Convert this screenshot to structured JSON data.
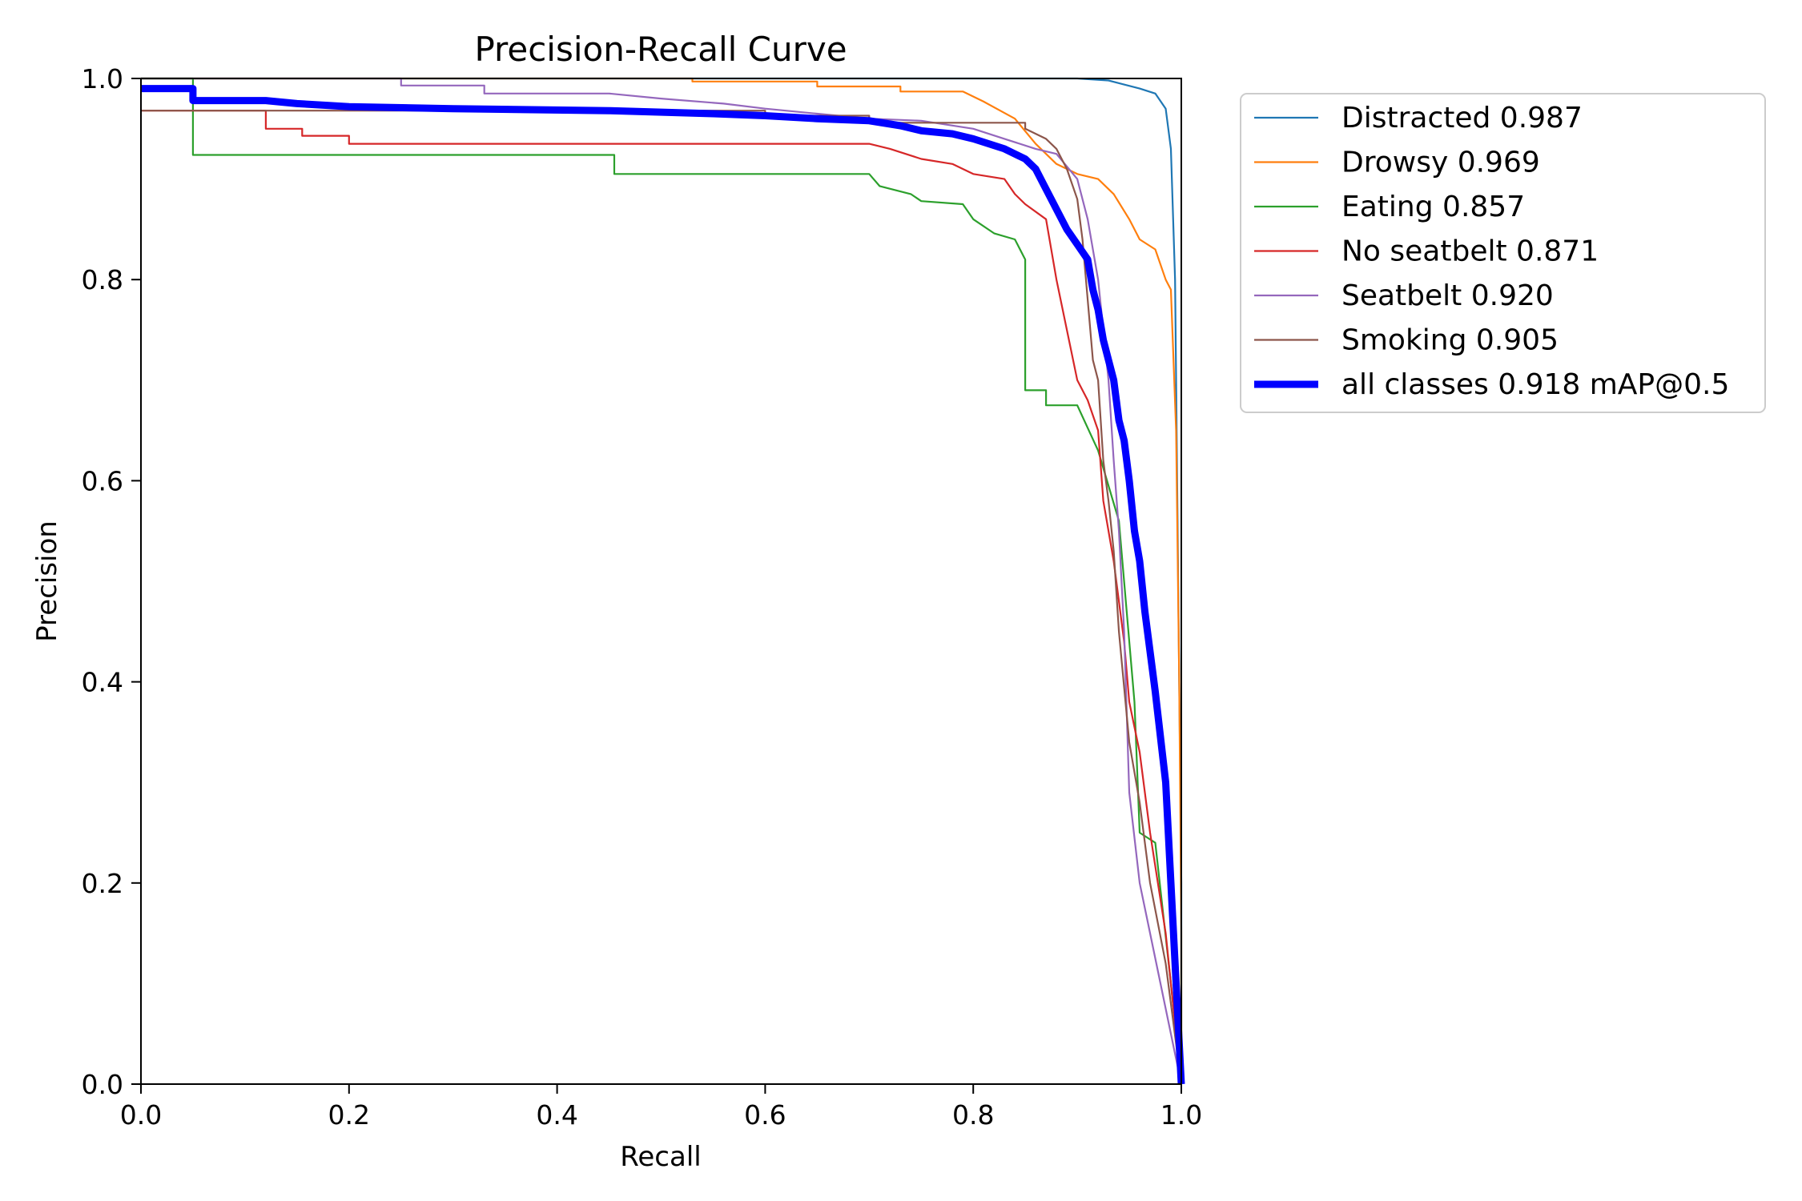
{
  "chart_data": {
    "type": "line",
    "title": "Precision-Recall Curve",
    "xlabel": "Recall",
    "ylabel": "Precision",
    "xlim": [
      0.0,
      1.0
    ],
    "ylim": [
      0.0,
      1.0
    ],
    "xticks": [
      "0.0",
      "0.2",
      "0.4",
      "0.6",
      "0.8",
      "1.0"
    ],
    "yticks": [
      "0.0",
      "0.2",
      "0.4",
      "0.6",
      "0.8",
      "1.0"
    ],
    "grid": false,
    "legend_position": "outside-top-right",
    "series": [
      {
        "name": "Distracted",
        "label": "Distracted 0.987",
        "color": "#1f77b4",
        "emphasis": false,
        "points": [
          [
            0.0,
            1.0
          ],
          [
            0.9,
            1.0
          ],
          [
            0.93,
            0.998
          ],
          [
            0.96,
            0.99
          ],
          [
            0.975,
            0.985
          ],
          [
            0.985,
            0.97
          ],
          [
            0.99,
            0.93
          ],
          [
            0.994,
            0.8
          ],
          [
            0.997,
            0.5
          ],
          [
            1.0,
            0.2
          ],
          [
            1.0,
            0.0
          ]
        ]
      },
      {
        "name": "Drowsy",
        "label": "Drowsy 0.969",
        "color": "#ff7f0e",
        "emphasis": false,
        "points": [
          [
            0.0,
            1.0
          ],
          [
            0.53,
            1.0
          ],
          [
            0.53,
            0.997
          ],
          [
            0.65,
            0.997
          ],
          [
            0.65,
            0.992
          ],
          [
            0.73,
            0.992
          ],
          [
            0.73,
            0.987
          ],
          [
            0.79,
            0.987
          ],
          [
            0.81,
            0.977
          ],
          [
            0.84,
            0.96
          ],
          [
            0.86,
            0.935
          ],
          [
            0.88,
            0.915
          ],
          [
            0.9,
            0.905
          ],
          [
            0.92,
            0.9
          ],
          [
            0.935,
            0.885
          ],
          [
            0.95,
            0.86
          ],
          [
            0.96,
            0.84
          ],
          [
            0.975,
            0.83
          ],
          [
            0.985,
            0.8
          ],
          [
            0.99,
            0.79
          ],
          [
            0.995,
            0.65
          ],
          [
            0.998,
            0.4
          ],
          [
            1.0,
            0.15
          ],
          [
            1.0,
            0.0
          ]
        ]
      },
      {
        "name": "Eating",
        "label": "Eating 0.857",
        "color": "#2ca02c",
        "emphasis": false,
        "points": [
          [
            0.0,
            1.0
          ],
          [
            0.05,
            1.0
          ],
          [
            0.05,
            0.924
          ],
          [
            0.455,
            0.924
          ],
          [
            0.455,
            0.905
          ],
          [
            0.7,
            0.905
          ],
          [
            0.71,
            0.893
          ],
          [
            0.74,
            0.885
          ],
          [
            0.75,
            0.878
          ],
          [
            0.79,
            0.875
          ],
          [
            0.8,
            0.86
          ],
          [
            0.82,
            0.846
          ],
          [
            0.84,
            0.84
          ],
          [
            0.85,
            0.82
          ],
          [
            0.85,
            0.69
          ],
          [
            0.87,
            0.69
          ],
          [
            0.87,
            0.675
          ],
          [
            0.9,
            0.675
          ],
          [
            0.92,
            0.63
          ],
          [
            0.94,
            0.56
          ],
          [
            0.955,
            0.38
          ],
          [
            0.96,
            0.25
          ],
          [
            0.975,
            0.24
          ],
          [
            0.99,
            0.1
          ],
          [
            1.0,
            0.0
          ]
        ]
      },
      {
        "name": "No seatbelt",
        "label": "No seatbelt 0.871",
        "color": "#d62728",
        "emphasis": false,
        "points": [
          [
            0.0,
            0.968
          ],
          [
            0.12,
            0.968
          ],
          [
            0.12,
            0.95
          ],
          [
            0.155,
            0.95
          ],
          [
            0.155,
            0.943
          ],
          [
            0.2,
            0.943
          ],
          [
            0.2,
            0.935
          ],
          [
            0.7,
            0.935
          ],
          [
            0.72,
            0.93
          ],
          [
            0.75,
            0.92
          ],
          [
            0.78,
            0.915
          ],
          [
            0.8,
            0.905
          ],
          [
            0.83,
            0.9
          ],
          [
            0.84,
            0.885
          ],
          [
            0.85,
            0.875
          ],
          [
            0.87,
            0.86
          ],
          [
            0.88,
            0.8
          ],
          [
            0.89,
            0.75
          ],
          [
            0.9,
            0.7
          ],
          [
            0.91,
            0.68
          ],
          [
            0.92,
            0.65
          ],
          [
            0.925,
            0.58
          ],
          [
            0.935,
            0.52
          ],
          [
            0.94,
            0.48
          ],
          [
            0.945,
            0.44
          ],
          [
            0.95,
            0.38
          ],
          [
            0.96,
            0.33
          ],
          [
            0.97,
            0.25
          ],
          [
            0.985,
            0.15
          ],
          [
            1.0,
            0.0
          ]
        ]
      },
      {
        "name": "Seatbelt",
        "label": "Seatbelt 0.920",
        "color": "#9467bd",
        "emphasis": false,
        "points": [
          [
            0.0,
            1.0
          ],
          [
            0.25,
            1.0
          ],
          [
            0.25,
            0.993
          ],
          [
            0.33,
            0.993
          ],
          [
            0.33,
            0.985
          ],
          [
            0.45,
            0.985
          ],
          [
            0.5,
            0.98
          ],
          [
            0.56,
            0.975
          ],
          [
            0.6,
            0.97
          ],
          [
            0.65,
            0.965
          ],
          [
            0.7,
            0.96
          ],
          [
            0.75,
            0.958
          ],
          [
            0.8,
            0.95
          ],
          [
            0.83,
            0.94
          ],
          [
            0.86,
            0.93
          ],
          [
            0.88,
            0.925
          ],
          [
            0.9,
            0.9
          ],
          [
            0.91,
            0.86
          ],
          [
            0.92,
            0.8
          ],
          [
            0.925,
            0.75
          ],
          [
            0.93,
            0.7
          ],
          [
            0.935,
            0.62
          ],
          [
            0.94,
            0.55
          ],
          [
            0.945,
            0.45
          ],
          [
            0.95,
            0.29
          ],
          [
            0.96,
            0.2
          ],
          [
            0.98,
            0.1
          ],
          [
            1.0,
            0.0
          ]
        ]
      },
      {
        "name": "Smoking",
        "label": "Smoking 0.905",
        "color": "#8c564b",
        "emphasis": false,
        "points": [
          [
            0.0,
            0.968
          ],
          [
            0.6,
            0.968
          ],
          [
            0.6,
            0.963
          ],
          [
            0.7,
            0.963
          ],
          [
            0.7,
            0.956
          ],
          [
            0.85,
            0.956
          ],
          [
            0.85,
            0.95
          ],
          [
            0.87,
            0.94
          ],
          [
            0.88,
            0.93
          ],
          [
            0.89,
            0.91
          ],
          [
            0.9,
            0.88
          ],
          [
            0.905,
            0.84
          ],
          [
            0.91,
            0.78
          ],
          [
            0.915,
            0.72
          ],
          [
            0.92,
            0.7
          ],
          [
            0.925,
            0.62
          ],
          [
            0.93,
            0.58
          ],
          [
            0.935,
            0.53
          ],
          [
            0.94,
            0.45
          ],
          [
            0.95,
            0.34
          ],
          [
            0.96,
            0.28
          ],
          [
            0.97,
            0.2
          ],
          [
            0.985,
            0.12
          ],
          [
            1.0,
            0.0
          ]
        ]
      },
      {
        "name": "all classes",
        "label": "all classes 0.918 mAP@0.5",
        "color": "#0000ff",
        "emphasis": true,
        "points": [
          [
            0.0,
            0.99
          ],
          [
            0.05,
            0.99
          ],
          [
            0.05,
            0.978
          ],
          [
            0.12,
            0.978
          ],
          [
            0.15,
            0.975
          ],
          [
            0.2,
            0.972
          ],
          [
            0.3,
            0.97
          ],
          [
            0.45,
            0.968
          ],
          [
            0.55,
            0.965
          ],
          [
            0.6,
            0.963
          ],
          [
            0.65,
            0.96
          ],
          [
            0.7,
            0.958
          ],
          [
            0.73,
            0.953
          ],
          [
            0.75,
            0.948
          ],
          [
            0.78,
            0.945
          ],
          [
            0.8,
            0.94
          ],
          [
            0.83,
            0.93
          ],
          [
            0.85,
            0.92
          ],
          [
            0.86,
            0.91
          ],
          [
            0.87,
            0.89
          ],
          [
            0.88,
            0.87
          ],
          [
            0.89,
            0.85
          ],
          [
            0.9,
            0.835
          ],
          [
            0.91,
            0.82
          ],
          [
            0.915,
            0.79
          ],
          [
            0.92,
            0.77
          ],
          [
            0.925,
            0.74
          ],
          [
            0.93,
            0.72
          ],
          [
            0.935,
            0.7
          ],
          [
            0.94,
            0.66
          ],
          [
            0.945,
            0.64
          ],
          [
            0.95,
            0.6
          ],
          [
            0.955,
            0.55
          ],
          [
            0.96,
            0.52
          ],
          [
            0.965,
            0.47
          ],
          [
            0.97,
            0.43
          ],
          [
            0.975,
            0.39
          ],
          [
            0.985,
            0.3
          ],
          [
            0.99,
            0.2
          ],
          [
            0.995,
            0.1
          ],
          [
            1.0,
            0.0
          ]
        ]
      }
    ]
  }
}
